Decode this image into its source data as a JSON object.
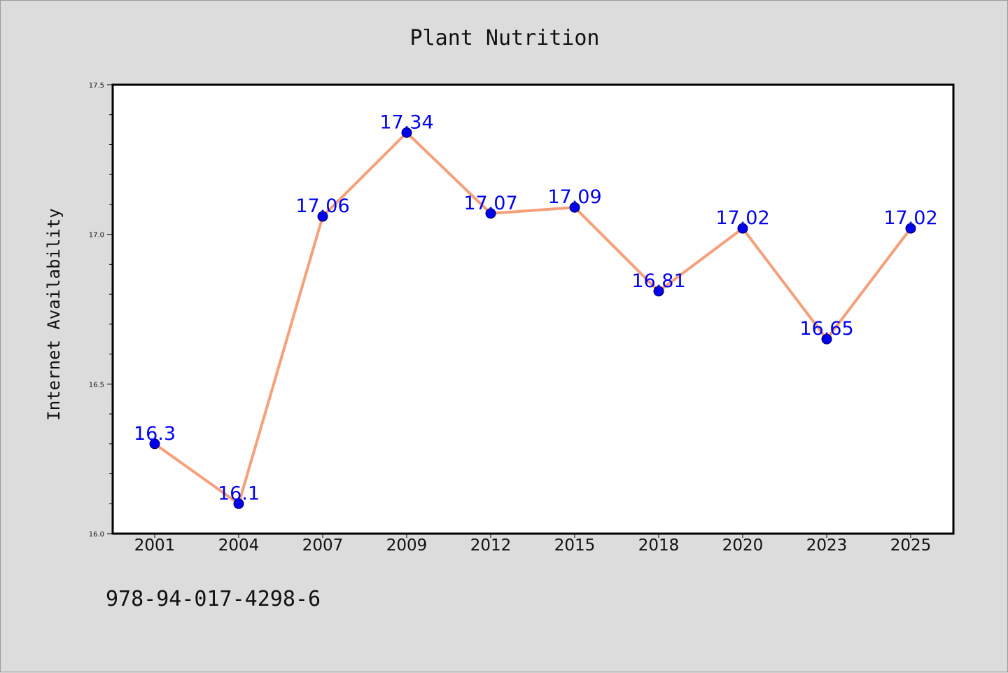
{
  "chart_data": {
    "type": "line",
    "title": "Plant Nutrition",
    "xlabel": "",
    "ylabel": "Internet Availability",
    "categories": [
      "2001",
      "2004",
      "2007",
      "2009",
      "2012",
      "2015",
      "2018",
      "2020",
      "2023",
      "2025"
    ],
    "series": [
      {
        "values": [
          16.3,
          16.1,
          17.06,
          17.34,
          17.07,
          17.09,
          16.81,
          17.02,
          16.65,
          17.02
        ],
        "data_labels": [
          "16.3",
          "16.1",
          "17.06",
          "17.34",
          "17.07",
          "17.09",
          "16.81",
          "17.02",
          "16.65",
          "17.02"
        ]
      }
    ],
    "ylim": [
      16.0,
      17.5
    ],
    "yticks": [
      "16.0",
      "16.5",
      "17.0",
      "17.5"
    ],
    "grid": false,
    "legend": "none",
    "colors": {
      "line": "#f5a07a",
      "marker": "#0000ee",
      "label": "#0000ee",
      "background": "#dcdcdc",
      "plot_area": "#ffffff"
    }
  },
  "footer_text": "978-94-017-4298-6"
}
